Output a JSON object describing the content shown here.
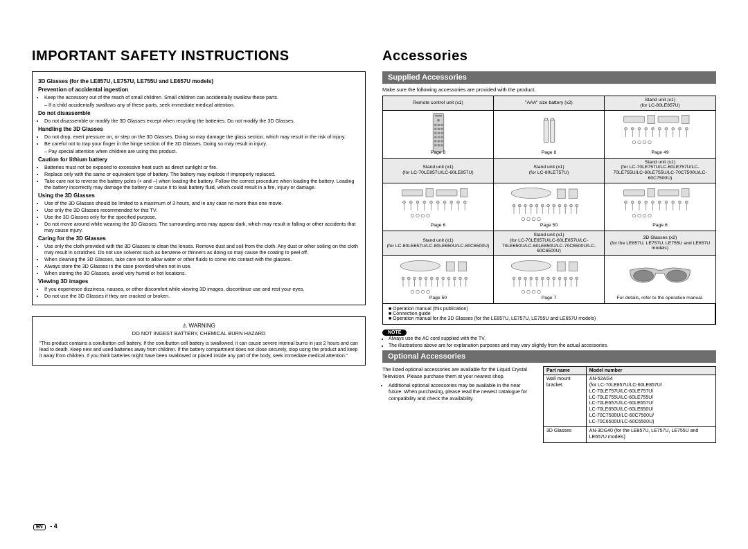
{
  "left": {
    "heading": "IMPORTANT SAFETY INSTRUCTIONS",
    "intro_title": "3D Glasses (for the LE857U, LE757U, LE755U and LE657U models)",
    "sections": [
      {
        "title": "Prevention of accidental ingestion",
        "bullets": [
          "Keep the accessory out of the reach of small children. Small children can accidentally swallow these parts."
        ],
        "dashes": [
          "If a child accidentally swallows any of these parts, seek immediate medical attention."
        ]
      },
      {
        "title": "Do not disassemble",
        "bullets": [
          "Do not disassemble or modify the 3D Glasses except when recycling the batteries. Do not modify the 3D Glasses."
        ]
      },
      {
        "title": "Handling the 3D Glasses",
        "bullets": [
          "Do not drop, exert pressure on, or step on the 3D Glasses. Doing so may damage the glass section, which may result in the risk of injury.",
          "Be careful not to trap your finger in the hinge section of the 3D Glasses. Doing so may result in injury."
        ],
        "dashes": [
          "Pay special attention when children are using this product."
        ]
      },
      {
        "title": "Caution for lithium battery",
        "bullets": [
          "Batteries must not be exposed to excessive heat such as direct sunlight or fire.",
          "Replace only with the same or equivalent type of battery. The battery may explode if improperly replaced.",
          "Take care not to reverse the battery poles (+ and –) when loading the battery. Follow the correct procedure when loading the battery. Loading the battery incorrectly may damage the battery or cause it to leak battery fluid, which could result in a fire, injury or damage."
        ]
      },
      {
        "title": "Using the 3D Glasses",
        "bullets": [
          "Use of the 3D Glasses should be limited to a maximum of 3 hours, and in any case no more than one movie.",
          "Use only the 3D Glasses recommended for this TV.",
          "Use the 3D Glasses only for the specified purpose.",
          "Do not move around while wearing the 3D Glasses. The surrounding area may appear dark, which may result in falling or other accidents that may cause injury."
        ]
      },
      {
        "title": "Caring for the 3D Glasses",
        "bullets": [
          "Use only the cloth provided with the 3D Glasses to clean the lenses. Remove dust and soil from the cloth. Any dust or other soiling on the cloth may result in scratches. Do not use solvents such as benzene or thinners as doing so may cause the coating to peel off.",
          "When cleaning the 3D Glasses, take care not to allow water or other fluids to come into contact with the glasses.",
          "Always store the 3D Glasses in the case provided when not in use.",
          "When storing the 3D Glasses, avoid very humid or hot locations."
        ]
      },
      {
        "title": "Viewing 3D images",
        "bullets": [
          "If you experience dizziness, nausea, or other discomfort while viewing 3D images, discontinue use and rest your eyes.",
          "Do not use the 3D Glasses if they are cracked or broken."
        ]
      }
    ],
    "warning": {
      "label": "WARNING",
      "subtitle": "DO NOT INGEST BATTERY, CHEMICAL BURN HAZARD",
      "body": "\"This product contains a coin/button cell battery. If the coin/button cell battery is swallowed, it can cause severe internal burns in just 2 hours and can lead to death. Keep new and used batteries away from children. If the battery compartment does not close securely, stop using the product and keep it away from children. If you think batteries might have been swallowed or placed inside any part of the body, seek immediate medical attention.\""
    }
  },
  "right": {
    "heading": "Accessories",
    "supplied_bar": "Supplied Accessories",
    "supplied_intro": "Make sure the following accessories are provided with the product.",
    "grid": {
      "row1": [
        {
          "head": "Remote control unit (x1)",
          "foot": "Page 8"
        },
        {
          "head": "\"AAA\" size battery (x2)",
          "foot": "Page 8"
        },
        {
          "head": "Stand unit (x1)\n(for LC-80LE857U)",
          "foot": "Page 49"
        }
      ],
      "row2": [
        {
          "head": "Stand unit (x1)\n(for LC-70LE857U/LC-60LE857U)",
          "foot": "Page 6"
        },
        {
          "head": "Stand unit (x1)\n(for LC-80LE757U)",
          "foot": "Page 50"
        },
        {
          "head": "Stand unit (x1)\n(for LC-70LE757U/LC-60LE757U/LC-70LE755U/LC-60LE755U/LC-70C7500U/LC-60C7500U)",
          "foot": "Page 6"
        }
      ],
      "row3": [
        {
          "head": "Stand unit (x1)\n(for LC-80LE657U/LC-80LE650U/LC-80C6500U)",
          "foot": "Page 50"
        },
        {
          "head": "Stand unit (x1)\n(for LC-70LE657U/LC-60LE657U/LC-70LE650U/LC-60LE650U/LC-70C6500U/LC-60C6500U)",
          "foot": "Page 7"
        },
        {
          "head": "3D Glasses (x2)\n(for the LE857U, LE757U, LE755U and LE657U models)",
          "foot": "For details, refer to the operation manual."
        }
      ],
      "footer": [
        "Operation manual (this publication)",
        "Connection guide",
        "Operation manual for the 3D Glasses (for the LE857U, LE757U, LE755U and LE657U models)"
      ]
    },
    "note_label": "NOTE",
    "notes": [
      "Always use the AC cord supplied with the TV.",
      "The illustrations above are for explanation purposes and may vary slightly from the actual accessories."
    ],
    "optional_bar": "Optional Accessories",
    "optional_intro": "The listed optional accessories are available for the Liquid Crystal Television. Please purchase them at your nearest shop.",
    "optional_bullets": [
      "Additional optional accessories may be available in the near future. When purchasing, please read the newest catalogue for compatibility and check the availability."
    ],
    "opt_table": {
      "head": [
        "Part name",
        "Model number"
      ],
      "rows": [
        [
          "Wall mount bracket",
          "AN-52AG4\n(for LC-70LE857U/LC-60LE857U/\nLC-70LE757U/LC-60LE757U/\nLC-70LE755U/LC-60LE755U/\nLC-70LE657U/LC-60LE657U/\nLC-70LE650U/LC-60LE650U/\nLC-70C7500U/LC-60C7500U/\nLC-70C6500U/LC-60C6500U)"
        ],
        [
          "3D Glasses",
          "AN-3DG40 (for the LE857U, LE757U, LE755U and LE657U models)"
        ]
      ]
    }
  },
  "page_label_prefix": "EN",
  "page_number": "4"
}
